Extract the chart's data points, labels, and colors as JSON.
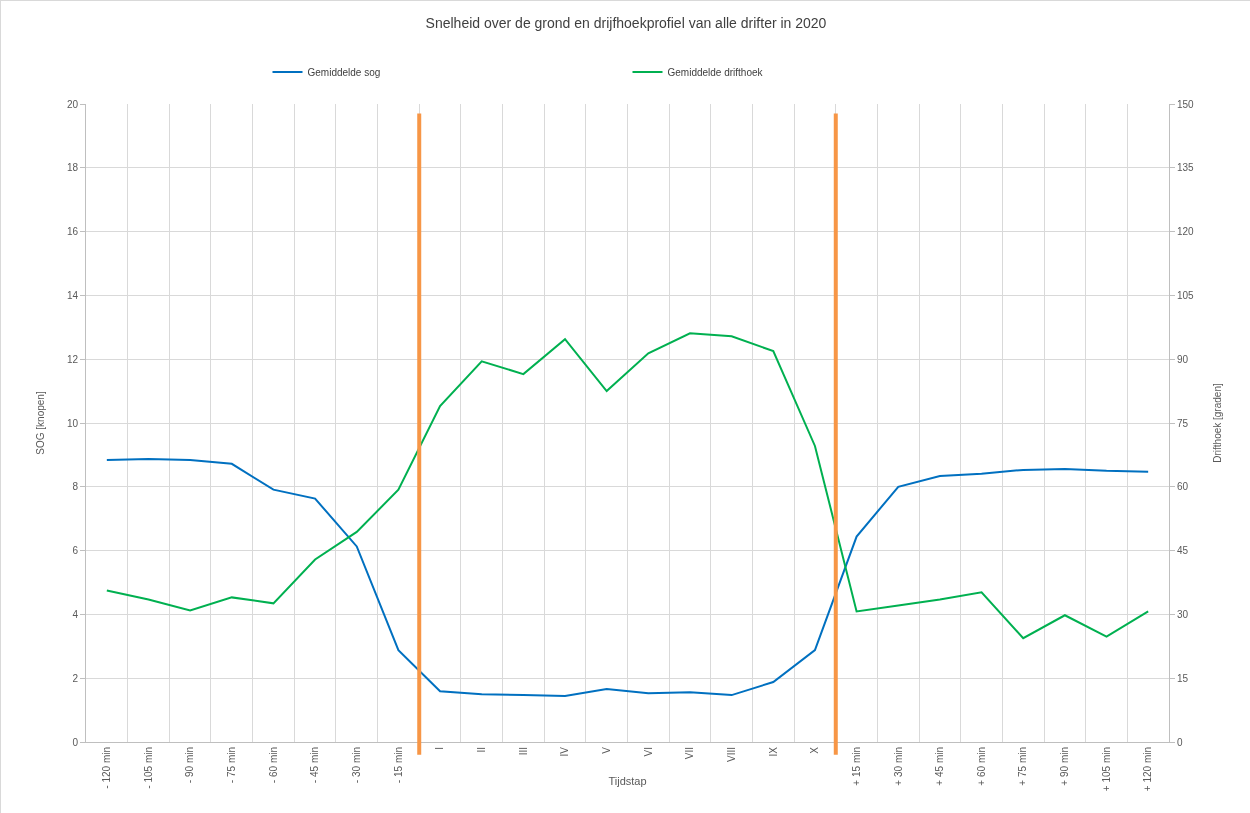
{
  "chart_data": {
    "type": "line",
    "title": "Snelheid over de grond en drijfhoekprofiel van alle drifter in 2020",
    "xlabel": "Tijdstap",
    "ylabel": "SOG [knopen]",
    "y2label": "Drifthoek [graden]",
    "categories": [
      "- 120 min",
      "- 105 min",
      "- 90 min",
      "- 75 min",
      "- 60 min",
      "- 45 min",
      "- 30 min",
      "- 15 min",
      "I",
      "II",
      "III",
      "IV",
      "V",
      "VI",
      "VII",
      "VIII",
      "IX",
      "X",
      "+ 15 min",
      "+ 30 min",
      "+ 45 min",
      "+ 60 min",
      "+ 75 min",
      "+ 90 min",
      "+ 105 min",
      "+ 120 min"
    ],
    "series": [
      {
        "name": "Gemiddelde sog",
        "color": "#0070c0",
        "values": [
          8.84,
          8.87,
          8.84,
          8.72,
          7.91,
          7.63,
          6.13,
          2.88,
          1.59,
          1.5,
          1.47,
          1.44,
          1.66,
          1.53,
          1.56,
          1.47,
          1.88,
          2.88,
          6.44,
          8.0,
          8.34,
          8.41,
          8.53,
          8.56,
          8.5,
          8.47
        ]
      },
      {
        "name": "Gemiddelde drifthoek",
        "color": "#00b050",
        "axis": "y2",
        "values": [
          35.6,
          33.5,
          30.9,
          34.0,
          32.6,
          42.9,
          49.4,
          59.3,
          79.0,
          89.5,
          86.5,
          94.7,
          82.5,
          91.4,
          96.1,
          95.4,
          91.9,
          69.6,
          30.7,
          32.1,
          33.5,
          35.2,
          24.4,
          29.8,
          24.8,
          30.7
        ]
      }
    ],
    "ylim": [
      0,
      20
    ],
    "yticks": [
      0,
      2,
      4,
      6,
      8,
      10,
      12,
      14,
      16,
      18,
      20
    ],
    "y2lim": [
      0,
      150
    ],
    "y2ticks": [
      0,
      15,
      30,
      45,
      60,
      75,
      90,
      105,
      120,
      135,
      150
    ],
    "grid": true,
    "legend": "top",
    "marker": "none",
    "line_style": "solid"
  }
}
